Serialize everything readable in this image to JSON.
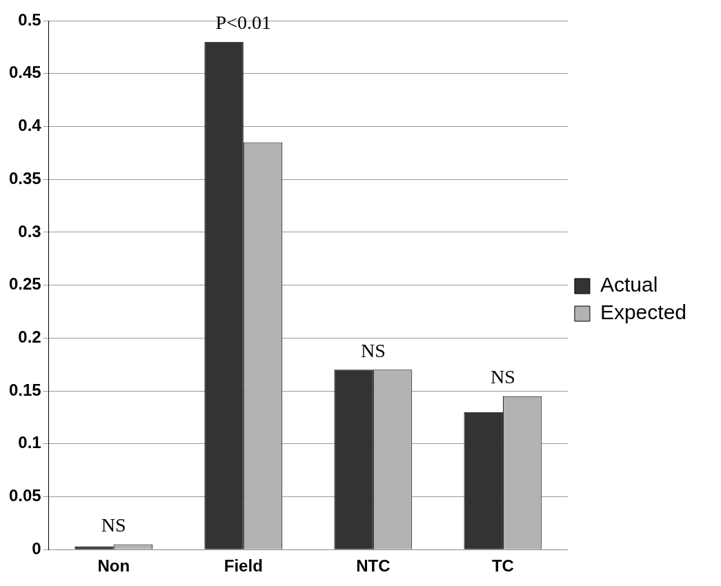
{
  "chart_data": {
    "type": "bar",
    "categories": [
      "Non",
      "Field",
      "NTC",
      "TC"
    ],
    "series": [
      {
        "name": "Actual",
        "color": "#333333",
        "values": [
          0.003,
          0.48,
          0.17,
          0.13
        ]
      },
      {
        "name": "Expected",
        "color": "#b3b3b3",
        "values": [
          0.005,
          0.385,
          0.17,
          0.145
        ]
      }
    ],
    "ylim": [
      0,
      0.5
    ],
    "yticks": [
      0,
      0.05,
      0.1,
      0.15,
      0.2,
      0.25,
      0.3,
      0.35,
      0.4,
      0.45,
      0.5
    ],
    "grid": "y",
    "legend": "right",
    "annotations": [
      "NS",
      "P<0.01",
      "NS",
      "NS"
    ]
  }
}
